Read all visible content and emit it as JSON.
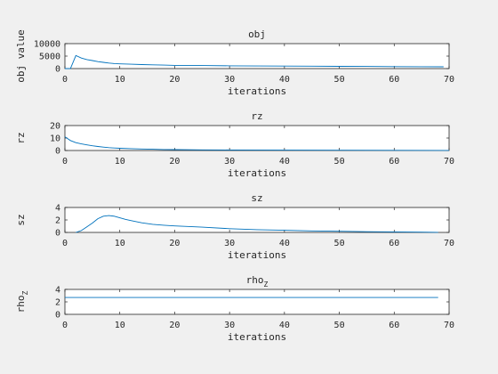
{
  "chart_data": [
    {
      "type": "line",
      "title": "obj",
      "title_sub": "",
      "xlabel": "iterations",
      "ylabel": "obj value",
      "ylabel_sub": "",
      "xlim": [
        0,
        70
      ],
      "ylim": [
        0,
        10000
      ],
      "xticks": [
        0,
        10,
        20,
        30,
        40,
        50,
        60,
        70
      ],
      "yticks": [
        0,
        5000,
        10000
      ],
      "grid": false,
      "series": [
        {
          "color": "#0072bd",
          "x": [
            0,
            1,
            2,
            3,
            4,
            5,
            6,
            7,
            8,
            9,
            10,
            12,
            14,
            16,
            18,
            20,
            25,
            30,
            35,
            40,
            45,
            50,
            55,
            60,
            65,
            69
          ],
          "y": [
            0,
            0,
            5200,
            4200,
            3600,
            3200,
            2800,
            2500,
            2200,
            2000,
            1900,
            1750,
            1600,
            1500,
            1400,
            1300,
            1200,
            1100,
            1050,
            1000,
            950,
            900,
            850,
            800,
            750,
            700
          ]
        }
      ]
    },
    {
      "type": "line",
      "title": "rz",
      "title_sub": "",
      "xlabel": "iterations",
      "ylabel": "rz",
      "ylabel_sub": "",
      "xlim": [
        0,
        70
      ],
      "ylim": [
        0,
        20
      ],
      "xticks": [
        0,
        10,
        20,
        30,
        40,
        50,
        60,
        70
      ],
      "yticks": [
        0,
        10,
        20
      ],
      "grid": false,
      "series": [
        {
          "color": "#0072bd",
          "x": [
            0,
            1,
            2,
            3,
            4,
            5,
            6,
            7,
            8,
            9,
            10,
            12,
            14,
            16,
            18,
            20,
            25,
            30,
            40,
            50,
            60,
            70
          ],
          "y": [
            11,
            8,
            6.3,
            5.3,
            4.5,
            3.8,
            3.2,
            2.7,
            2.3,
            2.0,
            1.8,
            1.5,
            1.2,
            1.0,
            0.8,
            0.7,
            0.5,
            0.4,
            0.3,
            0.2,
            0.15,
            0.1
          ]
        }
      ]
    },
    {
      "type": "line",
      "title": "sz",
      "title_sub": "",
      "xlabel": "iterations",
      "ylabel": "sz",
      "ylabel_sub": "",
      "xlim": [
        0,
        70
      ],
      "ylim": [
        0,
        4
      ],
      "xticks": [
        0,
        10,
        20,
        30,
        40,
        50,
        60,
        70
      ],
      "yticks": [
        0,
        2,
        4
      ],
      "grid": false,
      "series": [
        {
          "color": "#0072bd",
          "x": [
            2,
            3,
            4,
            5,
            6,
            7,
            8,
            9,
            10,
            11,
            12,
            14,
            16,
            18,
            20,
            25,
            30,
            35,
            40,
            45,
            50,
            55,
            60,
            65,
            68
          ],
          "y": [
            0,
            0.3,
            0.9,
            1.5,
            2.2,
            2.6,
            2.7,
            2.6,
            2.35,
            2.1,
            1.9,
            1.55,
            1.3,
            1.15,
            1.05,
            0.85,
            0.6,
            0.45,
            0.35,
            0.25,
            0.18,
            0.12,
            0.08,
            0.04,
            0.02
          ]
        }
      ]
    },
    {
      "type": "line",
      "title": "rho",
      "title_sub": "Z",
      "xlabel": "iterations",
      "ylabel": "rho",
      "ylabel_sub": "Z",
      "xlim": [
        0,
        70
      ],
      "ylim": [
        0,
        4
      ],
      "xticks": [
        0,
        10,
        20,
        30,
        40,
        50,
        60,
        70
      ],
      "yticks": [
        0,
        2,
        4
      ],
      "grid": false,
      "series": [
        {
          "color": "#0072bd",
          "x": [
            0,
            68
          ],
          "y": [
            2.7,
            2.7
          ]
        }
      ]
    }
  ]
}
